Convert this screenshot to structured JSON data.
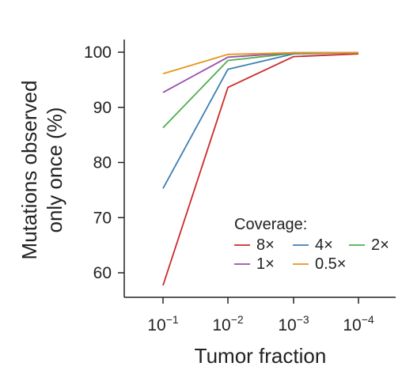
{
  "chart_data": {
    "type": "line",
    "xlabel": "Tumor fraction",
    "ylabel_lines": [
      "Mutations observed",
      "only once (%)"
    ],
    "x": [
      {
        "base": "10",
        "exp": "−1"
      },
      {
        "base": "10",
        "exp": "−2"
      },
      {
        "base": "10",
        "exp": "−3"
      },
      {
        "base": "10",
        "exp": "−4"
      }
    ],
    "yticks": [
      60,
      70,
      80,
      90,
      100
    ],
    "ylim": [
      55,
      102
    ],
    "legend_title": "Coverage:",
    "legend_position": "bottom-right",
    "grid": false,
    "series": [
      {
        "name": "8×",
        "color": "#cc2a2a",
        "values": [
          57.7,
          93.6,
          99.2,
          99.7
        ]
      },
      {
        "name": "4×",
        "color": "#3d7fb5",
        "values": [
          75.3,
          96.9,
          99.7,
          99.9
        ]
      },
      {
        "name": "2×",
        "color": "#4fae4f",
        "values": [
          86.3,
          98.5,
          99.8,
          99.9
        ]
      },
      {
        "name": "1×",
        "color": "#9a4fae",
        "values": [
          92.7,
          99.1,
          99.9,
          99.9
        ]
      },
      {
        "name": "0.5×",
        "color": "#e6951c",
        "values": [
          96.1,
          99.6,
          99.9,
          99.9
        ]
      }
    ]
  }
}
